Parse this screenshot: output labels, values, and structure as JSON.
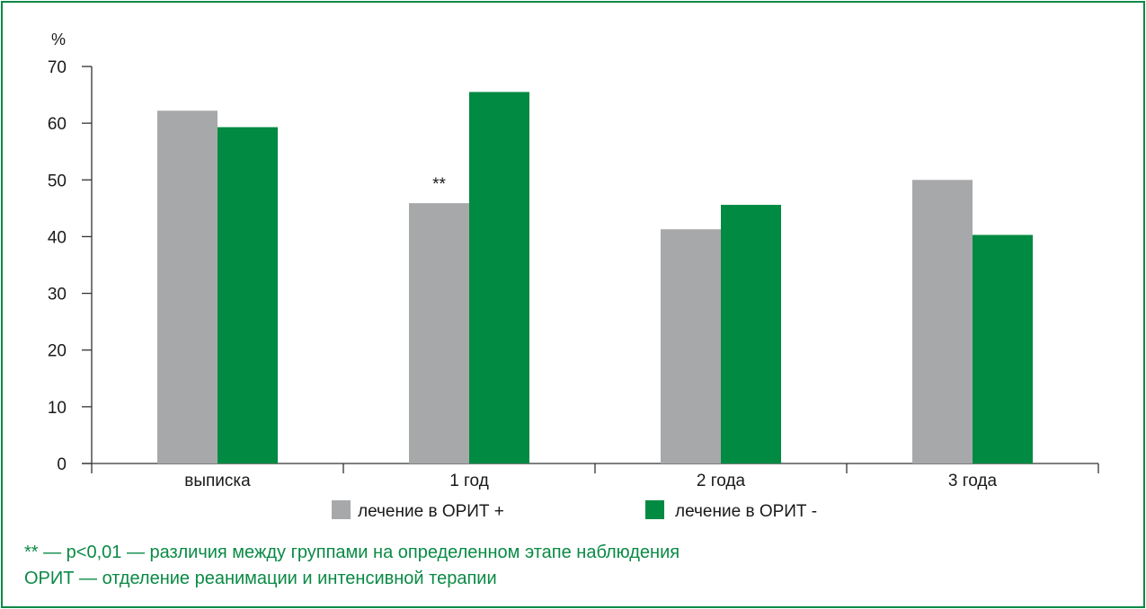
{
  "colors": {
    "frame": "#0a8a45",
    "axis": "#333333"
  },
  "chart_data": {
    "type": "bar",
    "ylabel": "%",
    "ylim": [
      0,
      70
    ],
    "yticks": [
      "0",
      "10",
      "20",
      "30",
      "40",
      "50",
      "60",
      "70"
    ],
    "categories": [
      "выписка",
      "1 год",
      "2 года",
      "3 года"
    ],
    "series": [
      {
        "name": "лечение в ОРИТ +",
        "color": "#a7a8aa",
        "values": [
          62.2,
          45.9,
          41.3,
          50.0
        ]
      },
      {
        "name": "лечение в ОРИТ -",
        "color": "#008a42",
        "values": [
          59.3,
          65.5,
          45.6,
          40.3
        ]
      }
    ],
    "annotations": [
      {
        "text": "**",
        "category": "1 год"
      }
    ],
    "grid": false,
    "legend": "bottom"
  },
  "footnotes": [
    "** — p<0,01 — различия между группами на определенном этапе наблюдения",
    "ОРИТ — отделение реанимации и интенсивной терапии"
  ]
}
